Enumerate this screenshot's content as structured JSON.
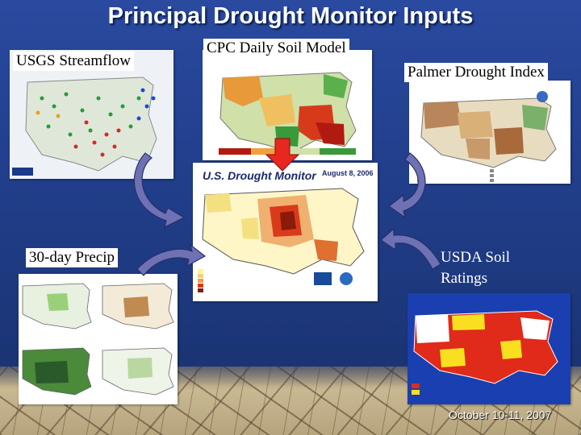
{
  "slide": {
    "title": "Principal Drought Monitor Inputs",
    "footer_date": "October 10-11, 2007"
  },
  "inputs": {
    "usgs_streamflow": {
      "label": "USGS Streamflow"
    },
    "cpc_soil_model": {
      "label": "CPC Daily Soil Model"
    },
    "palmer_index": {
      "label": "Palmer Drought Index"
    },
    "precip_30day": {
      "label": "30-day Precip"
    },
    "usda_soil": {
      "label": "USDA Soil Ratings"
    }
  },
  "center": {
    "title": "U.S. Drought Monitor",
    "date": "August 8, 2006"
  },
  "colors": {
    "arrow_fill": "#6e72b4",
    "red_arrow": "#e8281e"
  }
}
